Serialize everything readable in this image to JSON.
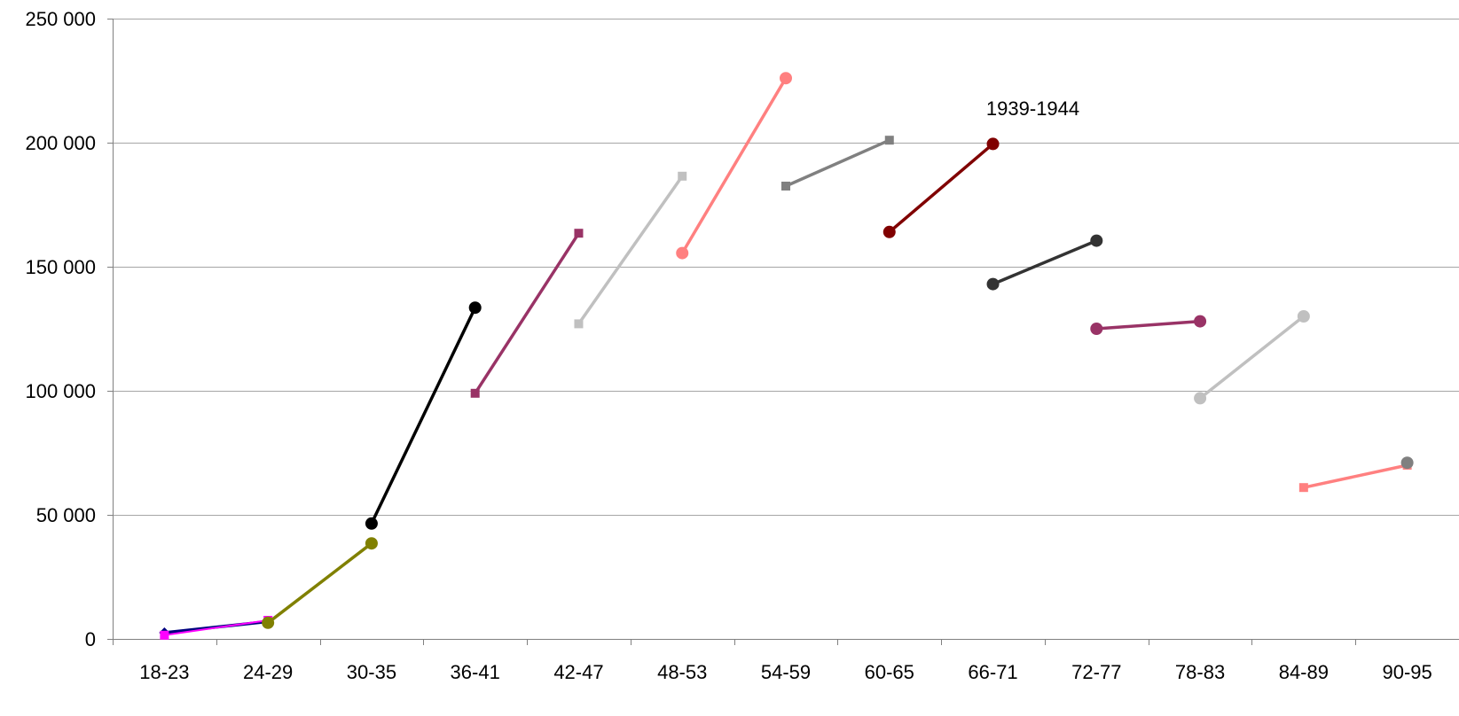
{
  "chart_data": {
    "type": "line",
    "title": "",
    "xlabel": "",
    "ylabel": "",
    "categories": [
      "18-23",
      "24-29",
      "30-35",
      "36-41",
      "42-47",
      "48-53",
      "54-59",
      "60-65",
      "66-71",
      "72-77",
      "78-83",
      "84-89",
      "90-95"
    ],
    "y_ticks": [
      "0",
      "50 000",
      "100 000",
      "150 000",
      "200 000",
      "250 000"
    ],
    "y_tick_values": [
      0,
      50000,
      100000,
      150000,
      200000,
      250000
    ],
    "ylim": [
      0,
      250000
    ],
    "grid": "horizontal",
    "legend": "none",
    "series": [
      {
        "color": "#000080",
        "marker": "diamond",
        "x": [
          "18-23",
          "24-29"
        ],
        "values": [
          2500,
          7000
        ]
      },
      {
        "color": "#FF00FF",
        "marker": "square",
        "x": [
          "18-23",
          "24-29"
        ],
        "values": [
          1500,
          7500
        ]
      },
      {
        "color": "#808000",
        "marker": "circle",
        "x": [
          "24-29",
          "30-35"
        ],
        "values": [
          6500,
          38500
        ]
      },
      {
        "color": "#000000",
        "marker": "circle",
        "x": [
          "30-35",
          "36-41"
        ],
        "values": [
          46500,
          133500
        ]
      },
      {
        "color": "#993366",
        "marker": "square",
        "x": [
          "36-41",
          "42-47"
        ],
        "values": [
          99000,
          163500
        ]
      },
      {
        "color": "#C0C0C0",
        "marker": "square",
        "x": [
          "42-47",
          "48-53"
        ],
        "values": [
          127000,
          186500
        ]
      },
      {
        "color": "#FF8080",
        "marker": "circle",
        "x": [
          "48-53",
          "54-59"
        ],
        "values": [
          155500,
          226000
        ]
      },
      {
        "color": "#808080",
        "marker": "square",
        "x": [
          "54-59",
          "60-65"
        ],
        "values": [
          182500,
          201000
        ]
      },
      {
        "color": "#800000",
        "marker": "circle",
        "x": [
          "60-65",
          "66-71"
        ],
        "values": [
          164000,
          199500
        ]
      },
      {
        "color": "#333333",
        "marker": "circle",
        "x": [
          "66-71",
          "72-77"
        ],
        "values": [
          143000,
          160500
        ]
      },
      {
        "color": "#993366",
        "marker": "circle",
        "x": [
          "72-77",
          "78-83"
        ],
        "values": [
          125000,
          128000
        ]
      },
      {
        "color": "#C0C0C0",
        "marker": "circle",
        "x": [
          "78-83",
          "84-89"
        ],
        "values": [
          97000,
          130000
        ]
      },
      {
        "color": "#FF8080",
        "marker": "square",
        "x": [
          "84-89",
          "90-95"
        ],
        "values": [
          61000,
          70000
        ]
      },
      {
        "color": "#808080",
        "marker": "circle",
        "x": [
          "90-95"
        ],
        "values": [
          71000
        ]
      }
    ],
    "annotations": [
      {
        "text": "1939-1944",
        "near_category": "66-71",
        "near_value": 214000
      }
    ]
  }
}
